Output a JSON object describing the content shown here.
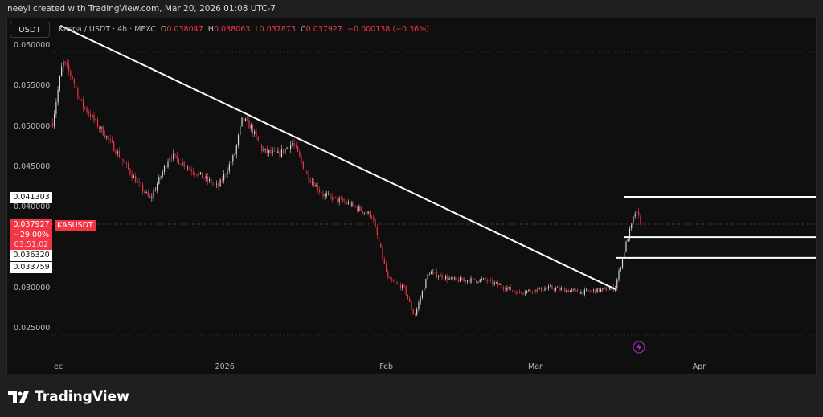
{
  "header": {
    "attribution": "neeyi created with TradingView.com, Mar 20, 2026 01:08 UTC-7"
  },
  "toolbar": {
    "currency_button": "USDT"
  },
  "legend": {
    "symbol": "Kaspa / USDT · 4h · MEXC",
    "o_label": "O",
    "o": "0.038047",
    "h_label": "H",
    "h": "0.038063",
    "l_label": "L",
    "l": "0.037873",
    "c_label": "C",
    "c": "0.037927",
    "change": "−0.000138 (−0.36%)"
  },
  "price_axis": {
    "ticks": [
      "0.060000",
      "0.055000",
      "0.050000",
      "0.045000",
      "0.040000",
      "0.030000",
      "0.025000"
    ],
    "tick_values": [
      0.06,
      0.055,
      0.05,
      0.045,
      0.04,
      0.03,
      0.025
    ]
  },
  "price_labels": {
    "level1": "0.041303",
    "level2": "0.036320",
    "level3": "0.033759",
    "current_price": "0.037927",
    "current_change": "−29.00%",
    "countdown": "03:51:02",
    "symbol": "KASUSDT"
  },
  "time_axis": {
    "labels": [
      "ec",
      "2026",
      "Feb",
      "Mar",
      "Apr"
    ],
    "days": [
      0,
      31,
      62,
      90,
      121
    ]
  },
  "chart_data": {
    "type": "candlestick",
    "symbol": "KASUSDT",
    "interval": "4h",
    "anchors_day": [
      -1,
      0.9,
      2.8,
      4.3,
      8.9,
      12,
      15,
      17.4,
      21.2,
      25.6,
      30.2,
      33.3,
      34.8,
      36.3,
      38.6,
      41.6,
      44.3,
      47,
      50.1,
      54.6,
      59.2,
      62.3,
      65.3,
      67.2,
      69.9,
      74.5,
      80.6,
      86.7,
      92.8,
      98.9,
      105,
      107.3,
      108.9,
      110.1
    ],
    "anchors_price": [
      0.0505,
      0.058,
      0.056,
      0.053,
      0.049,
      0.046,
      0.043,
      0.041,
      0.0465,
      0.0445,
      0.0425,
      0.0465,
      0.051,
      0.05,
      0.047,
      0.0465,
      0.048,
      0.044,
      0.0415,
      0.0405,
      0.039,
      0.031,
      0.03,
      0.0265,
      0.032,
      0.031,
      0.031,
      0.0295,
      0.03,
      0.0295,
      0.03,
      0.036,
      0.0395,
      0.0379
    ],
    "trendline": {
      "start_day": 0.5,
      "start_price": 0.0625,
      "end_day": 105,
      "end_price": 0.0299
    },
    "horizontal_levels": [
      0.041303,
      0.03632,
      0.033759
    ],
    "current_price": 0.037927,
    "colors": {
      "up": "#d8d8d8",
      "down": "#f23645",
      "line": "#ffffff"
    }
  },
  "footer": {
    "brand": "TradingView"
  }
}
